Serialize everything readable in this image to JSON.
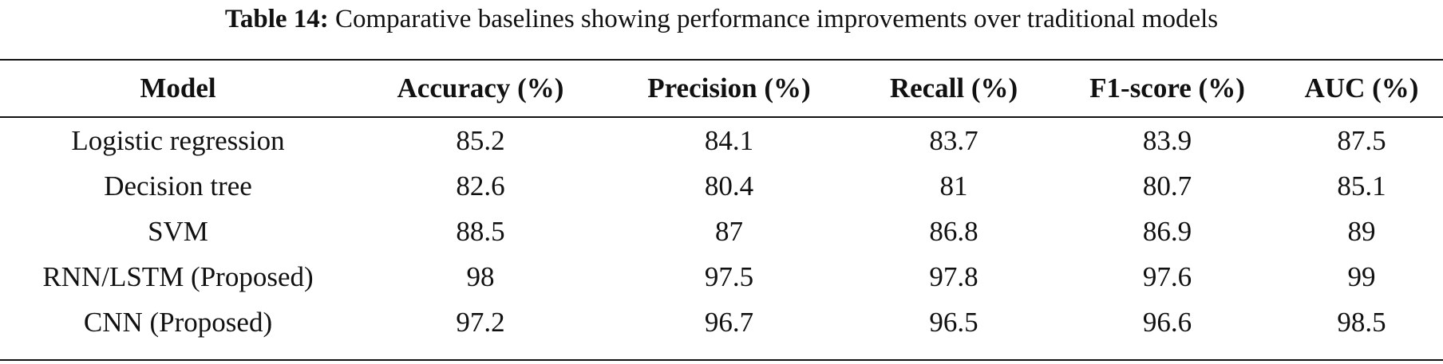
{
  "caption": {
    "label": "Table 14:",
    "text": "Comparative baselines showing performance improvements over traditional models"
  },
  "table": {
    "columns": [
      "Model",
      "Accuracy (%)",
      "Precision (%)",
      "Recall (%)",
      "F1-score (%)",
      "AUC (%)"
    ],
    "rows": [
      [
        "Logistic regression",
        "85.2",
        "84.1",
        "83.7",
        "83.9",
        "87.5"
      ],
      [
        "Decision tree",
        "82.6",
        "80.4",
        "81",
        "80.7",
        "85.1"
      ],
      [
        "SVM",
        "88.5",
        "87",
        "86.8",
        "86.9",
        "89"
      ],
      [
        "RNN/LSTM (Proposed)",
        "98",
        "97.5",
        "97.8",
        "97.6",
        "99"
      ],
      [
        "CNN (Proposed)",
        "97.2",
        "96.7",
        "96.5",
        "96.6",
        "98.5"
      ]
    ]
  }
}
